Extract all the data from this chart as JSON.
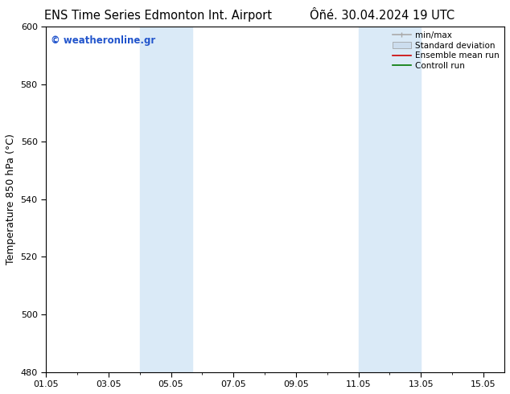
{
  "title_left": "ENS Time Series Edmonton Int. Airport",
  "title_right": "Ôñé. 30.04.2024 19 UTC",
  "ylabel": "Temperature 850 hPa (°C)",
  "ylim": [
    480,
    600
  ],
  "yticks": [
    480,
    500,
    520,
    540,
    560,
    580,
    600
  ],
  "xmin": 1.0,
  "xmax": 15.67,
  "xtick_positions": [
    1,
    3,
    5,
    7,
    9,
    11,
    13,
    15
  ],
  "xtick_labels": [
    "01.05",
    "03.05",
    "05.05",
    "07.05",
    "09.05",
    "11.05",
    "13.05",
    "15.05"
  ],
  "shaded_regions": [
    {
      "xmin": 4.0,
      "xmax": 5.67,
      "color": "#daeaf7"
    },
    {
      "xmin": 11.0,
      "xmax": 13.0,
      "color": "#daeaf7"
    }
  ],
  "watermark_text": "© weatheronline.gr",
  "watermark_color": "#2255cc",
  "legend_entries": [
    {
      "label": "min/max",
      "type": "line",
      "color": "#aaaaaa",
      "lw": 1.2
    },
    {
      "label": "Standard deviation",
      "type": "patch",
      "color": "#ccddee"
    },
    {
      "label": "Ensemble mean run",
      "type": "line",
      "color": "#cc0000",
      "lw": 1.2
    },
    {
      "label": "Controll run",
      "type": "line",
      "color": "#007700",
      "lw": 1.2
    }
  ],
  "background_color": "#ffffff",
  "title_fontsize": 10.5,
  "tick_fontsize": 8,
  "ylabel_fontsize": 9,
  "legend_fontsize": 7.5,
  "watermark_fontsize": 8.5
}
